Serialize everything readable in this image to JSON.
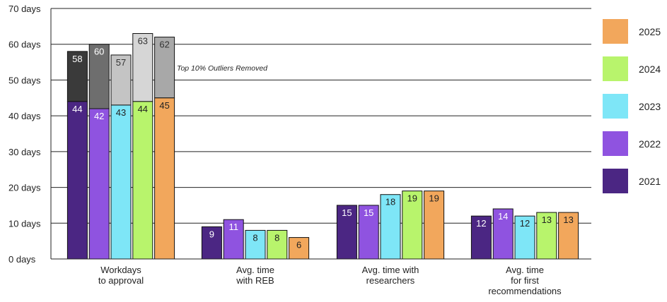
{
  "chart_data": {
    "type": "bar",
    "ylim": [
      0,
      70
    ],
    "y_ticks": [
      0,
      10,
      20,
      30,
      40,
      50,
      60,
      70
    ],
    "y_tick_labels": [
      "0 days",
      "10 days",
      "20 days",
      "30 days",
      "40 days",
      "50 days",
      "60 days",
      "70 days"
    ],
    "grid": true,
    "legend_position": "right",
    "categories": [
      [
        "Workdays",
        "to approval"
      ],
      [
        "Avg. time",
        "with REB"
      ],
      [
        "Avg. time with",
        "researchers"
      ],
      [
        "Avg. time",
        "for first",
        "recommendations"
      ]
    ],
    "series": [
      {
        "name": "2021",
        "color": "#4b2683",
        "values": [
          44,
          9,
          15,
          12
        ]
      },
      {
        "name": "2022",
        "color": "#8f53e0",
        "values": [
          42,
          11,
          15,
          14
        ]
      },
      {
        "name": "2023",
        "color": "#7ee6f7",
        "values": [
          43,
          8,
          18,
          12
        ]
      },
      {
        "name": "2024",
        "color": "#b8f46c",
        "values": [
          44,
          8,
          19,
          13
        ]
      },
      {
        "name": "2025",
        "color": "#f2a75c",
        "values": [
          45,
          6,
          19,
          13
        ]
      }
    ],
    "with_outliers": {
      "category": "Workdays to approval",
      "values": [
        58,
        60,
        57,
        63,
        62
      ],
      "colors": [
        "#3a3a3a",
        "#6e6e6e",
        "#c4c4c4",
        "#d6d6d6",
        "#a8a8a8"
      ]
    },
    "annotation": "Top 10% Outliers Removed",
    "legend_order": [
      "2025",
      "2024",
      "2023",
      "2022",
      "2021"
    ]
  }
}
